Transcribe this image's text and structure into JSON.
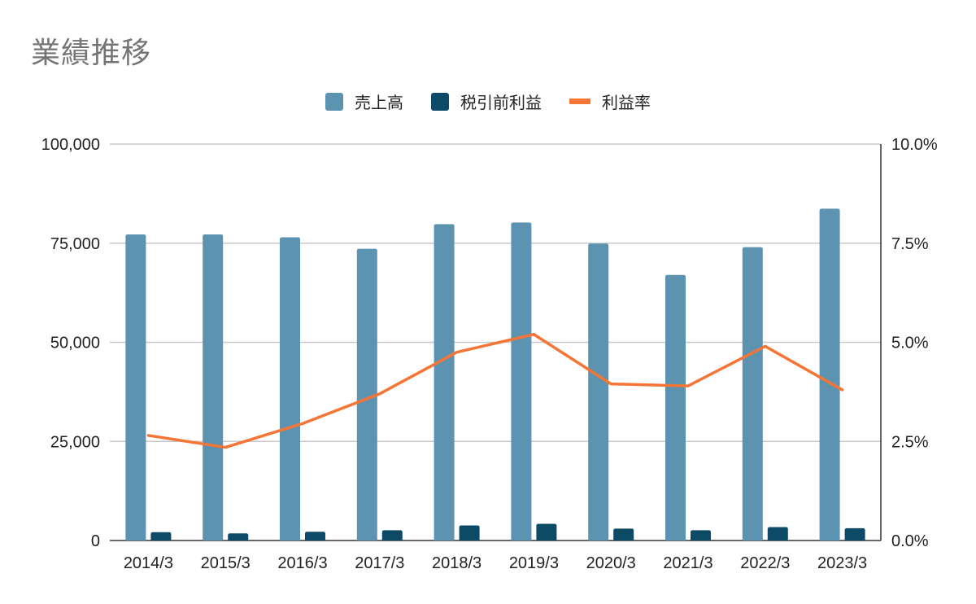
{
  "chart_data": {
    "type": "bar",
    "title": "業績推移",
    "categories": [
      "2014/3",
      "2015/3",
      "2016/3",
      "2017/3",
      "2018/3",
      "2019/3",
      "2020/3",
      "2021/3",
      "2022/3",
      "2023/3"
    ],
    "series": [
      {
        "name": "売上高",
        "type": "bar",
        "axis": "left",
        "color": "#5b93b1",
        "values": [
          77200,
          77200,
          76500,
          73600,
          79800,
          80200,
          74900,
          67000,
          74000,
          83700
        ]
      },
      {
        "name": "税引前利益",
        "type": "bar",
        "axis": "left",
        "color": "#0d4a66",
        "values": [
          2100,
          1800,
          2200,
          2600,
          3800,
          4200,
          3000,
          2600,
          3400,
          3100
        ]
      },
      {
        "name": "利益率",
        "type": "line",
        "axis": "right",
        "color": "#f47536",
        "values": [
          2.65,
          2.35,
          2.95,
          3.7,
          4.75,
          5.2,
          3.95,
          3.9,
          4.9,
          3.8
        ]
      }
    ],
    "yleft": {
      "min": 0,
      "max": 100000,
      "ticks": [
        "0",
        "25,000",
        "50,000",
        "75,000",
        "100,000"
      ]
    },
    "yright": {
      "min": 0,
      "max": 10,
      "ticks": [
        "0.0%",
        "2.5%",
        "5.0%",
        "7.5%",
        "10.0%"
      ]
    },
    "grid": true,
    "legend_position": "top"
  }
}
